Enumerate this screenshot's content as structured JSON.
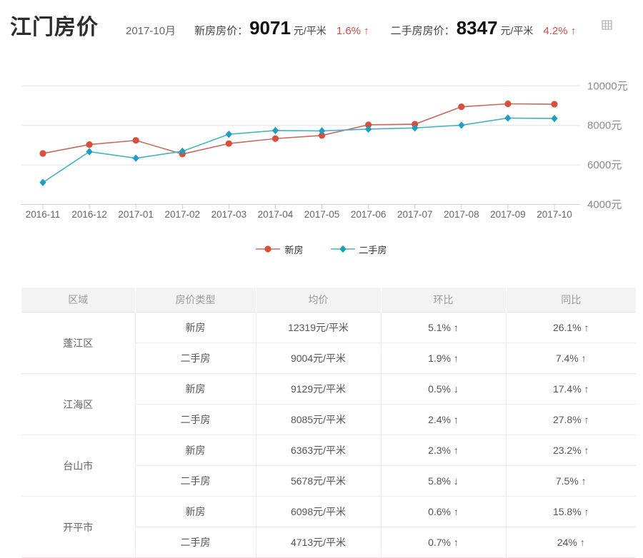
{
  "page": {
    "title": "江门房价",
    "period": "2017-10月",
    "new_house": {
      "label": "新房房价：",
      "price": "9071",
      "unit": "元/平米",
      "change": "1.6% ↑"
    },
    "second_house": {
      "label": "二手房房价：",
      "price": "8347",
      "unit": "元/平米",
      "change": "4.2% ↑"
    },
    "accent_red": "#c8504a",
    "accent_green": "#a0c25c"
  },
  "chart_data": {
    "type": "line",
    "x": [
      "2016-11",
      "2016-12",
      "2017-01",
      "2017-02",
      "2017-03",
      "2017-04",
      "2017-05",
      "2017-06",
      "2017-07",
      "2017-08",
      "2017-09",
      "2017-10"
    ],
    "series": [
      {
        "name": "新房",
        "marker": "circle",
        "line_color": "#c76a5e",
        "marker_color": "#d8503c",
        "values": [
          6580,
          7030,
          7240,
          6550,
          7080,
          7330,
          7490,
          8030,
          8060,
          8940,
          9090,
          9071
        ]
      },
      {
        "name": "二手房",
        "marker": "diamond",
        "line_color": "#45b2c6",
        "marker_color": "#1f9ec0",
        "values": [
          5110,
          6670,
          6340,
          6690,
          7550,
          7740,
          7720,
          7810,
          7870,
          8010,
          8370,
          8347
        ]
      }
    ],
    "title": "",
    "xlabel": "",
    "ylabel": "",
    "ylabel_suffix": "元",
    "yticks": [
      4000,
      6000,
      8000,
      10000
    ],
    "ylim": [
      4000,
      10000
    ],
    "grid": true,
    "legend_position": "bottom"
  },
  "table": {
    "headers": [
      "区域",
      "房价类型",
      "均价",
      "环比",
      "同比"
    ],
    "regions": [
      {
        "name": "蓬江区",
        "rows": [
          {
            "type": "新房",
            "price": "12319元/平米",
            "mom": "5.1% ↑",
            "mom_dir": "up",
            "yoy": "26.1% ↑",
            "yoy_dir": "up"
          },
          {
            "type": "二手房",
            "price": "9004元/平米",
            "mom": "1.9% ↑",
            "mom_dir": "up",
            "yoy": "7.4% ↑",
            "yoy_dir": "up"
          }
        ]
      },
      {
        "name": "江海区",
        "rows": [
          {
            "type": "新房",
            "price": "9129元/平米",
            "mom": "0.5% ↓",
            "mom_dir": "down",
            "yoy": "17.4% ↑",
            "yoy_dir": "up"
          },
          {
            "type": "二手房",
            "price": "8085元/平米",
            "mom": "2.4% ↑",
            "mom_dir": "up",
            "yoy": "27.8% ↑",
            "yoy_dir": "up"
          }
        ]
      },
      {
        "name": "台山市",
        "rows": [
          {
            "type": "新房",
            "price": "6363元/平米",
            "mom": "2.3% ↑",
            "mom_dir": "up",
            "yoy": "23.2% ↑",
            "yoy_dir": "up"
          },
          {
            "type": "二手房",
            "price": "5678元/平米",
            "mom": "5.8% ↓",
            "mom_dir": "down",
            "yoy": "7.5% ↑",
            "yoy_dir": "up"
          }
        ]
      },
      {
        "name": "开平市",
        "rows": [
          {
            "type": "新房",
            "price": "6098元/平米",
            "mom": "0.6% ↑",
            "mom_dir": "up",
            "yoy": "15.8% ↑",
            "yoy_dir": "up"
          },
          {
            "type": "二手房",
            "price": "4713元/平米",
            "mom": "0.7% ↑",
            "mom_dir": "up",
            "yoy": "24% ↑",
            "yoy_dir": "up"
          }
        ]
      }
    ]
  }
}
